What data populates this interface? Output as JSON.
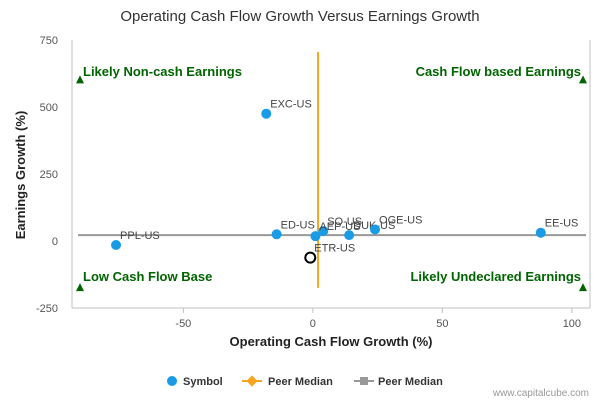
{
  "chart_data": {
    "type": "scatter",
    "title": "Operating Cash Flow Growth Versus Earnings Growth",
    "xlabel": "Operating Cash Flow Growth (%)",
    "ylabel": "Earnings Growth (%)",
    "xlim": [
      -93,
      107
    ],
    "ylim": [
      -250,
      750
    ],
    "xticks": [
      {
        "value": -50,
        "label": "-50"
      },
      {
        "value": 0,
        "label": "0"
      },
      {
        "value": 50,
        "label": "50"
      },
      {
        "value": 100,
        "label": "100"
      }
    ],
    "yticks": [
      {
        "value": -250,
        "label": "-250"
      },
      {
        "value": 0,
        "label": "0"
      },
      {
        "value": 250,
        "label": "250"
      },
      {
        "value": 500,
        "label": "500"
      },
      {
        "value": 750,
        "label": "750"
      }
    ],
    "series": [
      {
        "name": "Symbol",
        "color": "#1a9be6",
        "points": [
          {
            "label": "EXC-US",
            "x": -18,
            "y": 475
          },
          {
            "label": "PPL-US",
            "x": -76,
            "y": -15
          },
          {
            "label": "ED-US",
            "x": -14,
            "y": 25
          },
          {
            "label": "SO-US",
            "x": 4,
            "y": 37
          },
          {
            "label": "AEP-US",
            "x": 1,
            "y": 18
          },
          {
            "label": "DUK-US",
            "x": 14,
            "y": 22
          },
          {
            "label": "OGE-US",
            "x": 24,
            "y": 43
          },
          {
            "label": "EE-US",
            "x": 88,
            "y": 31
          }
        ]
      }
    ],
    "highlight": {
      "label": "ETR-US",
      "x": -1,
      "y": -62
    },
    "peer_median": {
      "vertical": {
        "name": "Peer Median",
        "x": 2,
        "color": "#f5a623"
      },
      "horizontal": {
        "name": "Peer Median",
        "y": 22,
        "color": "#999999"
      }
    },
    "quadrant_labels": {
      "top_left": "Likely Non-cash Earnings",
      "top_right": "Cash Flow based Earnings",
      "bottom_left": "Low Cash Flow Base",
      "bottom_right": "Likely Undeclared Earnings",
      "color": "#006400"
    },
    "legend": {
      "position": "bottom",
      "items": [
        {
          "name": "Symbol",
          "color": "#1a9be6",
          "marker": "circle"
        },
        {
          "name": "Peer Median",
          "color": "#f5a623",
          "marker": "diamond"
        },
        {
          "name": "Peer Median",
          "color": "#999999",
          "marker": "square"
        }
      ]
    },
    "grid": false
  },
  "credit": "www.capitalcube.com"
}
